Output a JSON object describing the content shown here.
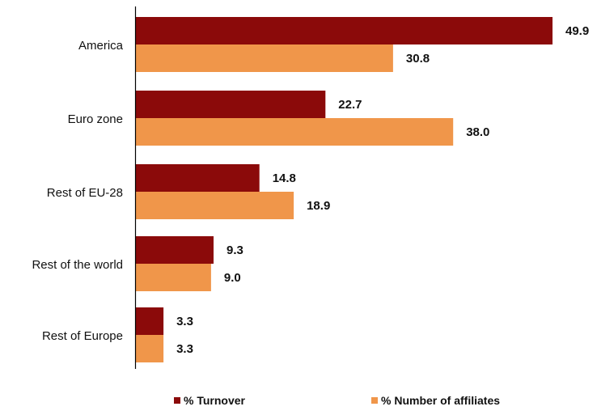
{
  "chart_data": {
    "type": "bar",
    "orientation": "horizontal",
    "categories": [
      "America",
      "Euro zone",
      "Rest of EU-28",
      "Rest of the world",
      "Rest of Europe"
    ],
    "series": [
      {
        "name": "% Turnover",
        "color": "#8b0a0a",
        "values": [
          49.9,
          22.7,
          14.8,
          9.3,
          3.3
        ]
      },
      {
        "name": "% Number of affiliates",
        "color": "#f0964a",
        "values": [
          30.8,
          38.0,
          18.9,
          9.0,
          3.3
        ]
      }
    ],
    "value_labels": [
      [
        "49.9",
        "22.7",
        "14.8",
        "9.3",
        "3.3"
      ],
      [
        "30.8",
        "38.0",
        "18.9",
        "9.0",
        "3.3"
      ]
    ],
    "xlim": [
      0,
      55
    ],
    "grid": false,
    "legend_position": "bottom"
  }
}
